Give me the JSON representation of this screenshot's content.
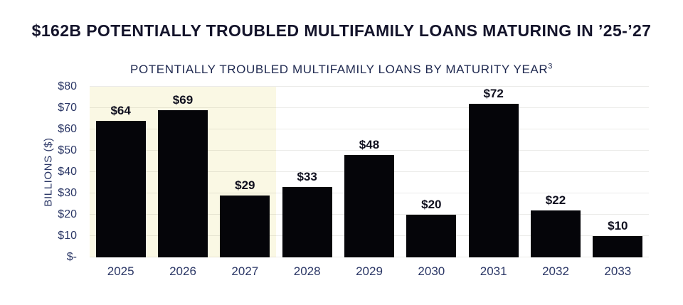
{
  "header": {
    "title": "$162B POTENTIALLY TROUBLED MULTIFAMILY LOANS MATURING IN ’25-’27"
  },
  "chart_data": {
    "type": "bar",
    "title": "POTENTIALLY TROUBLED MULTIFAMILY LOANS BY MATURITY YEAR",
    "title_superscript": "3",
    "xlabel": "",
    "ylabel": "BILLIONS ($)",
    "categories": [
      "2025",
      "2026",
      "2027",
      "2028",
      "2029",
      "2030",
      "2031",
      "2032",
      "2033"
    ],
    "values": [
      64,
      69,
      29,
      33,
      48,
      20,
      72,
      22,
      10
    ],
    "bar_labels": [
      "$64",
      "$69",
      "$29",
      "$33",
      "$48",
      "$20",
      "$72",
      "$22",
      "$10"
    ],
    "ylim": [
      0,
      80
    ],
    "yticks": [
      {
        "value": 0,
        "label": "$-"
      },
      {
        "value": 10,
        "label": "$10"
      },
      {
        "value": 20,
        "label": "$20"
      },
      {
        "value": 30,
        "label": "$30"
      },
      {
        "value": 40,
        "label": "$40"
      },
      {
        "value": 50,
        "label": "$50"
      },
      {
        "value": 60,
        "label": "$60"
      },
      {
        "value": 70,
        "label": "$70"
      },
      {
        "value": 80,
        "label": "$80"
      }
    ],
    "grid": true,
    "legend": "none",
    "highlight_region": {
      "categories": [
        "2025",
        "2026",
        "2027"
      ],
      "color": "#FAF8E4"
    },
    "colors": {
      "bar": "#050509",
      "title": "#14142B",
      "subtitle": "#1F2950",
      "axis_text": "#2B3766",
      "bar_label": "#10101F",
      "background": "#FFFFFF"
    }
  }
}
